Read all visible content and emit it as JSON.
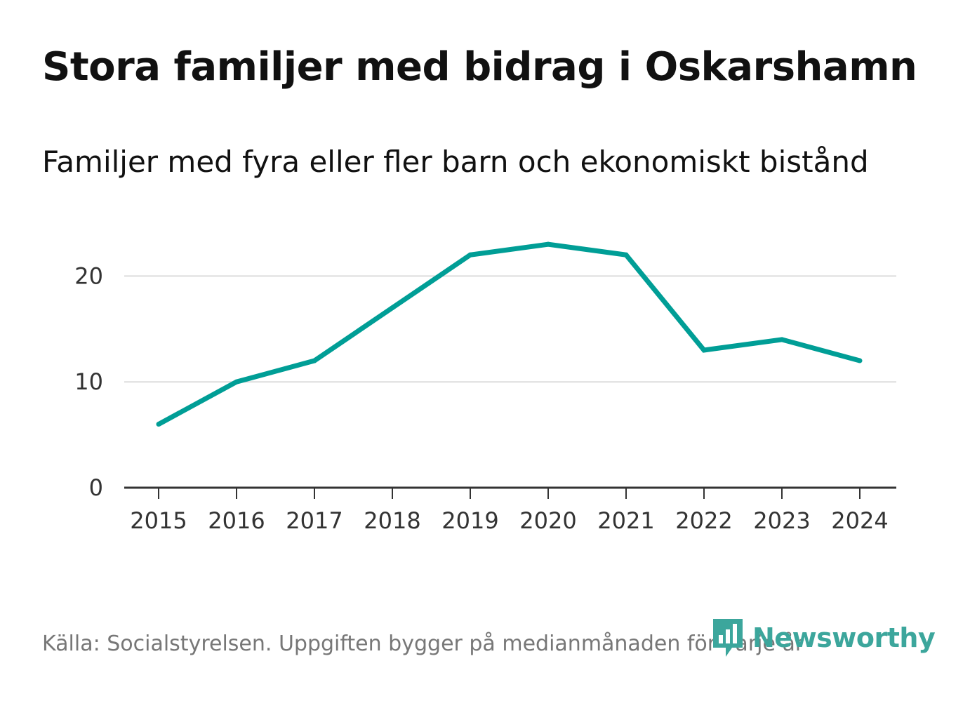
{
  "header": {
    "title": "Stora familjer med bidrag i Oskarshamn",
    "subtitle": "Familjer med fyra eller fler barn och ekonomiskt bistånd"
  },
  "footer": {
    "source": "Källa: Socialstyrelsen. Uppgiften bygger på medianmånaden för varje år"
  },
  "brand": {
    "name": "Newsworthy",
    "icon": "newsworthy-logo-icon"
  },
  "colors": {
    "line": "#009e96",
    "grid": "#dddddd",
    "axis": "#333333",
    "text": "#111111",
    "muted": "#777777",
    "brand": "#3ca69c"
  },
  "chart_data": {
    "type": "line",
    "title": "Stora familjer med bidrag i Oskarshamn",
    "subtitle": "Familjer med fyra eller fler barn och ekonomiskt bistånd",
    "x": [
      "2015",
      "2016",
      "2017",
      "2018",
      "2019",
      "2020",
      "2021",
      "2022",
      "2023",
      "2024"
    ],
    "series": [
      {
        "name": "Familjer med fyra eller fler barn och ekonomiskt bistånd",
        "values": [
          6,
          10,
          12,
          17,
          22,
          23,
          22,
          13,
          14,
          12
        ]
      }
    ],
    "yticks": [
      0,
      10,
      20
    ],
    "ylim": [
      0,
      25
    ],
    "grid": true,
    "xlabel": "",
    "ylabel": ""
  }
}
